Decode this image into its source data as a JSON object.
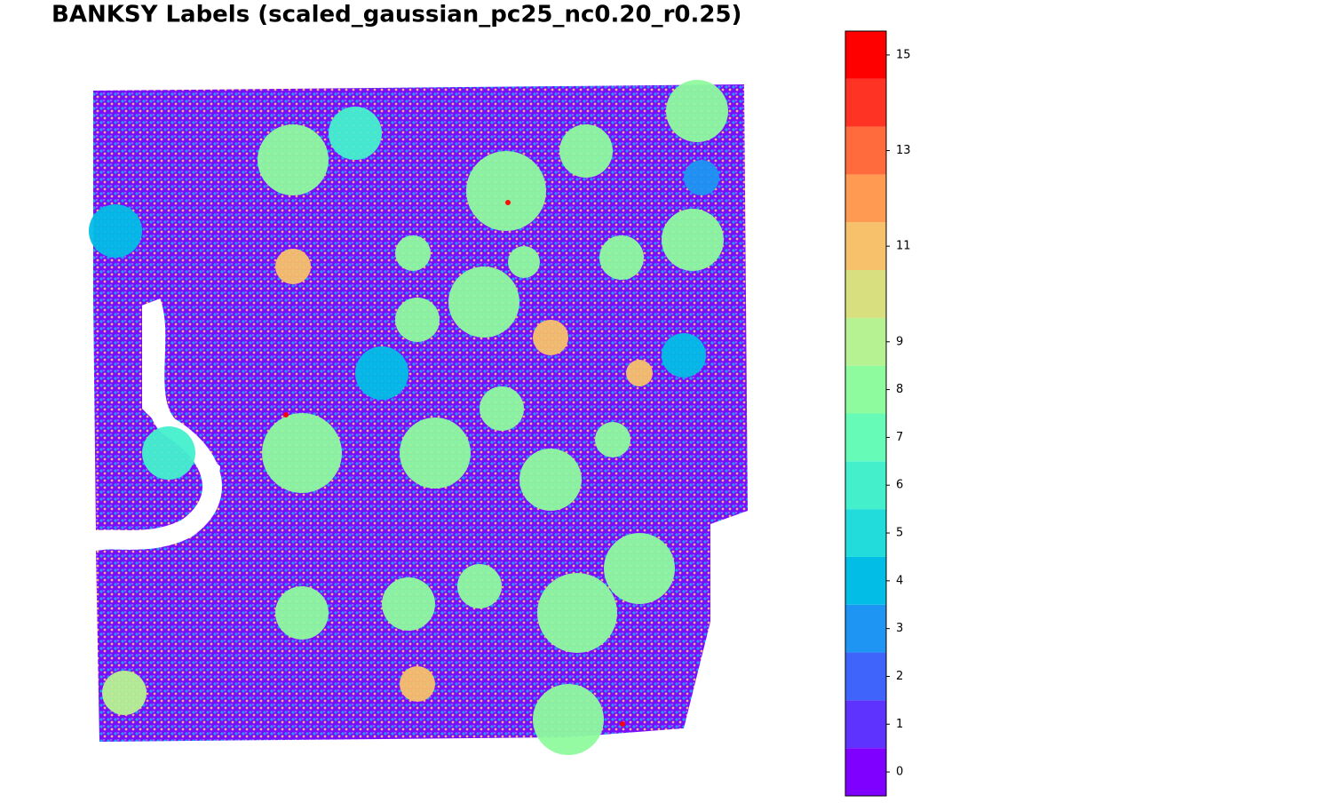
{
  "chart_data": {
    "type": "scatter",
    "title": "BANKSY Labels (scaled_gaussian_pc25_nc0.20_r0.25)",
    "xlim": [
      0,
      740
    ],
    "ylim": [
      0,
      740
    ],
    "points": {
      "x": [
        225,
        465,
        555,
        680,
        675,
        440,
        365,
        360,
        485,
        595,
        235,
        385,
        460,
        515,
        585,
        235,
        355,
        435,
        545,
        615,
        535,
        295,
        85,
        25,
        665,
        35,
        325,
        225,
        515,
        365,
        615,
        685,
        467,
        217,
        596
      ],
      "y": [
        655,
        620,
        665,
        710,
        565,
        495,
        475,
        550,
        540,
        545,
        325,
        325,
        375,
        295,
        340,
        145,
        155,
        175,
        145,
        195,
        25,
        685,
        325,
        575,
        435,
        55,
        415,
        535,
        455,
        65,
        415,
        635,
        607,
        368,
        20
      ],
      "sizes": [
        40,
        45,
        30,
        35,
        35,
        40,
        25,
        20,
        18,
        25,
        45,
        40,
        25,
        35,
        20,
        30,
        30,
        25,
        45,
        40,
        40,
        30,
        30,
        30,
        25,
        25,
        30,
        20,
        20,
        20,
        15,
        20,
        3,
        3,
        3
      ],
      "labels": [
        8,
        8,
        8,
        8,
        8,
        8,
        8,
        8,
        8,
        8,
        8,
        8,
        8,
        8,
        8,
        8,
        8,
        8,
        8,
        8,
        8,
        6,
        6,
        4,
        4,
        9,
        4,
        11,
        11,
        11,
        11,
        3,
        15,
        15,
        15
      ]
    },
    "colorbar": {
      "levels": [
        0,
        1,
        2,
        3,
        4,
        5,
        6,
        7,
        8,
        9,
        10,
        11,
        12,
        13,
        14,
        15
      ],
      "colors": [
        "#8000ff",
        "#5f33fe",
        "#3f64fb",
        "#1e95f2",
        "#02bde6",
        "#22dcdc",
        "#44f0cc",
        "#66fcb8",
        "#8efb9e",
        "#b6f291",
        "#d7df7e",
        "#f6c16a",
        "#ff9a52",
        "#ff6b3d",
        "#ff3323",
        "#ff0000"
      ],
      "lim": [
        -0.5,
        15.5
      ],
      "ticks": [
        0,
        1,
        2,
        3,
        4,
        5,
        6,
        7,
        8,
        9,
        11,
        13,
        15
      ]
    }
  }
}
